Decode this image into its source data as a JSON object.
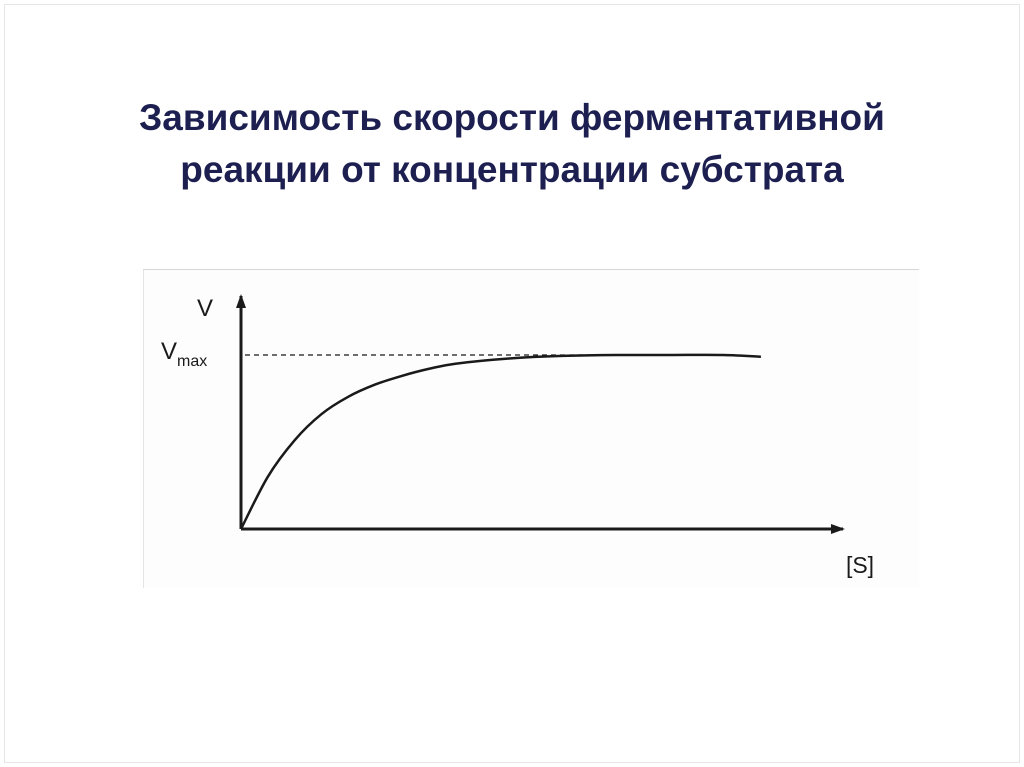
{
  "slide": {
    "title_line1": "Зависимость скорости ферментативной",
    "title_line2": "реакции от концентрации субстрата"
  },
  "chart_data": {
    "type": "line",
    "ylabel": "V",
    "xlabel": "[S]",
    "vmax_label_main": "V",
    "vmax_label_sub": "max",
    "vmax": 1,
    "xlim": [
      0,
      1
    ],
    "ylim": [
      0,
      1.3
    ],
    "series": [
      {
        "x": [
          0,
          0.05,
          0.1,
          0.15,
          0.2,
          0.25,
          0.3,
          0.35,
          0.4,
          0.5,
          0.6,
          0.7,
          0.8,
          0.9,
          0.97
        ],
        "values": [
          0,
          0.3,
          0.51,
          0.66,
          0.76,
          0.83,
          0.88,
          0.92,
          0.95,
          0.98,
          0.995,
          1.0,
          1.0,
          1.0,
          0.99
        ]
      }
    ],
    "reference_line": {
      "y": 1,
      "style": "dashed"
    },
    "colors": {
      "curve": "#1a1a1a",
      "axes": "#1a1a1a",
      "title": "#1c1f4f"
    }
  }
}
